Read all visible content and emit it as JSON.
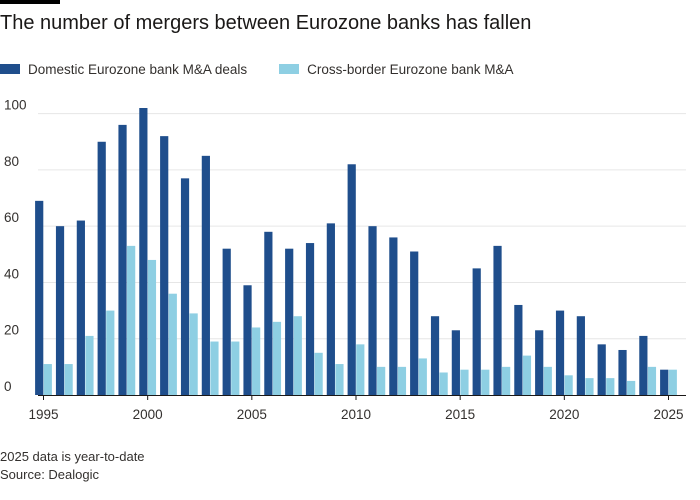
{
  "header": {
    "title": "The number of mergers between Eurozone banks has fallen"
  },
  "footer": {
    "note": "2025 data is year-to-date",
    "source": "Source: Dealogic"
  },
  "colors": {
    "domestic": "#1f4e8c",
    "cross_border": "#8ecfe3",
    "grid": "#e6e6e6",
    "axis": "#33302e"
  },
  "chart_data": {
    "type": "bar",
    "title": "The number of mergers between Eurozone banks has fallen",
    "xlabel": "",
    "ylabel": "",
    "ylim": [
      0,
      105
    ],
    "yticks": [
      0,
      20,
      40,
      60,
      80,
      100
    ],
    "xticks": [
      1995,
      2000,
      2005,
      2010,
      2015,
      2020,
      2025
    ],
    "grid": true,
    "legend_position": "top-left",
    "categories": [
      1995,
      1996,
      1997,
      1998,
      1999,
      2000,
      2001,
      2002,
      2003,
      2004,
      2005,
      2006,
      2007,
      2008,
      2009,
      2010,
      2011,
      2012,
      2013,
      2014,
      2015,
      2016,
      2017,
      2018,
      2019,
      2020,
      2021,
      2022,
      2023,
      2024,
      2025
    ],
    "series": [
      {
        "name": "Domestic Eurozone bank M&A deals",
        "color": "#1f4e8c",
        "values": [
          69,
          60,
          62,
          90,
          96,
          102,
          92,
          77,
          85,
          52,
          39,
          58,
          52,
          54,
          61,
          82,
          60,
          56,
          51,
          28,
          23,
          45,
          53,
          32,
          23,
          30,
          28,
          18,
          16,
          21,
          9
        ]
      },
      {
        "name": "Cross-border Eurozone bank M&A",
        "color": "#8ecfe3",
        "values": [
          11,
          11,
          21,
          30,
          53,
          48,
          36,
          29,
          19,
          19,
          24,
          26,
          28,
          15,
          11,
          18,
          10,
          10,
          13,
          8,
          9,
          9,
          10,
          14,
          10,
          7,
          6,
          6,
          5,
          10,
          9
        ]
      }
    ]
  }
}
